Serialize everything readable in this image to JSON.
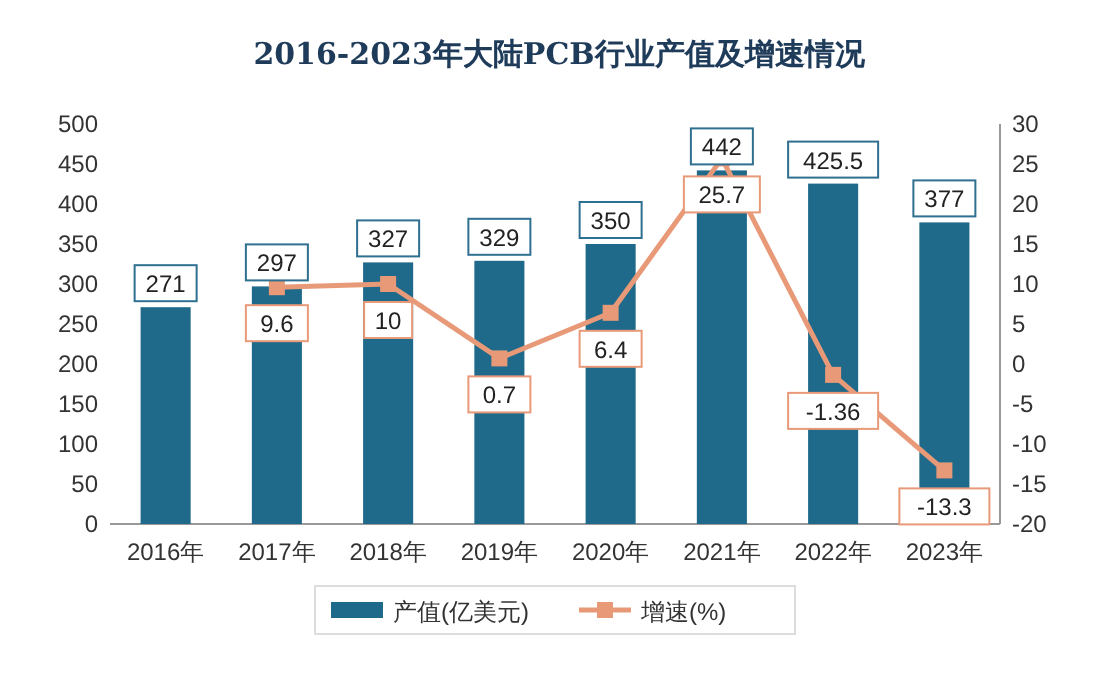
{
  "chart_data": {
    "type": "bar",
    "title": "2016-2023年大陆PCB行业产值及增速情况",
    "categories": [
      "2016年",
      "2017年",
      "2018年",
      "2019年",
      "2020年",
      "2021年",
      "2022年",
      "2023年"
    ],
    "series": [
      {
        "name": "产值(亿美元)",
        "color": "#1f6a8a",
        "values": [
          271,
          297,
          327,
          329,
          350,
          442,
          425.5,
          377
        ]
      },
      {
        "name": "增速(%)",
        "type": "line",
        "axis": "y2",
        "color": "#e89a78",
        "marker": "square",
        "values": [
          null,
          9.6,
          10,
          0.7,
          6.4,
          25.7,
          -1.36,
          -13.3
        ]
      }
    ],
    "ylim": [
      0,
      500
    ],
    "yticks": [
      0,
      50,
      100,
      150,
      200,
      250,
      300,
      350,
      400,
      450,
      500
    ],
    "y2lim": [
      -20,
      30
    ],
    "y2ticks": [
      -20,
      -15,
      -10,
      -5,
      0,
      5,
      10,
      15,
      20,
      25,
      30
    ],
    "data_labels": true,
    "legend": "bottom"
  }
}
